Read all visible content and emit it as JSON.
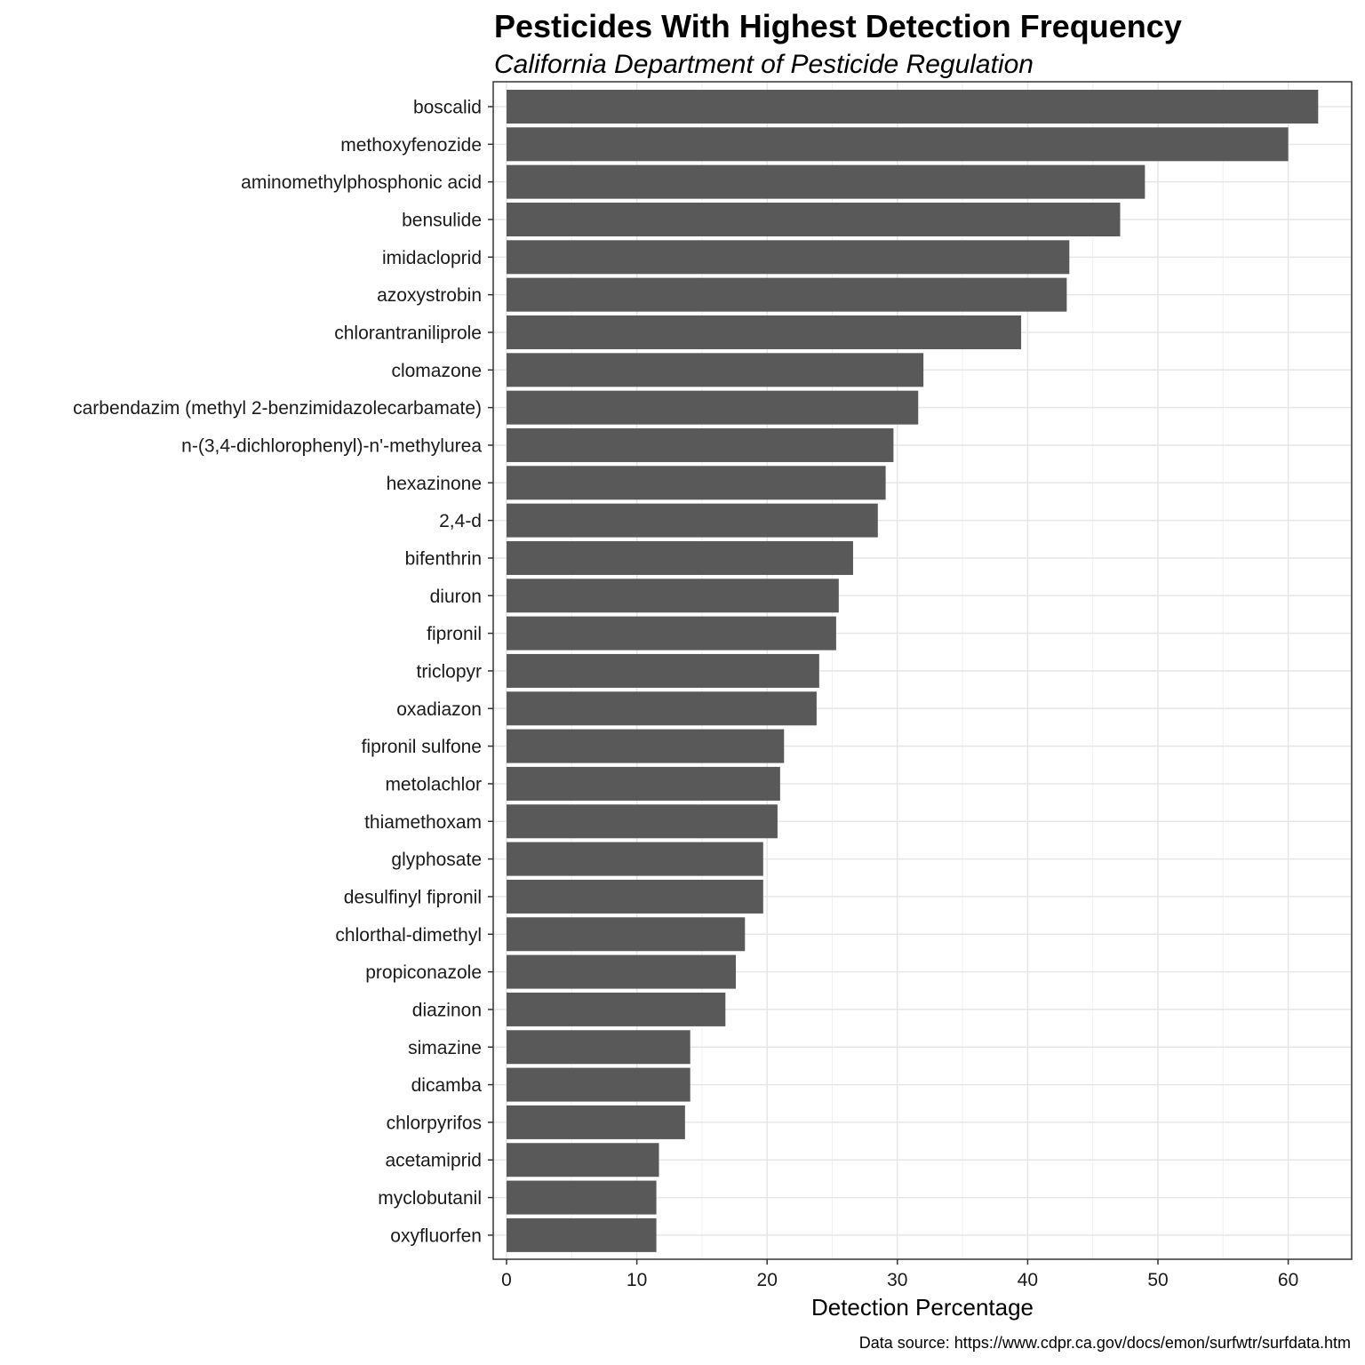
{
  "chart_data": {
    "type": "bar",
    "orientation": "horizontal",
    "title": "Pesticides With Highest Detection Frequency",
    "subtitle": "California Department of Pesticide Regulation",
    "xlabel": "Detection Percentage",
    "ylabel": "",
    "caption": "Data source: https://www.cdpr.ca.gov/docs/emon/surfwtr/surfdata.htm",
    "xlim": [
      0,
      65
    ],
    "x_ticks": [
      0,
      10,
      20,
      30,
      40,
      50,
      60
    ],
    "grid": true,
    "legend": "none",
    "bar_color": "#595959",
    "categories": [
      "boscalid",
      "methoxyfenozide",
      "aminomethylphosphonic acid",
      "bensulide",
      "imidacloprid",
      "azoxystrobin",
      "chlorantraniliprole",
      "clomazone",
      "carbendazim (methyl 2-benzimidazolecarbamate)",
      "n-(3,4-dichlorophenyl)-n'-methylurea",
      "hexazinone",
      "2,4-d",
      "bifenthrin",
      "diuron",
      "fipronil",
      "triclopyr",
      "oxadiazon",
      "fipronil sulfone",
      "metolachlor",
      "thiamethoxam",
      "glyphosate",
      "desulfinyl fipronil",
      "chlorthal-dimethyl",
      "propiconazole",
      "diazinon",
      "simazine",
      "dicamba",
      "chlorpyrifos",
      "acetamiprid",
      "myclobutanil",
      "oxyfluorfen"
    ],
    "values": [
      62.3,
      60.0,
      49.0,
      47.1,
      43.2,
      43.0,
      39.5,
      32.0,
      31.6,
      29.7,
      29.1,
      28.5,
      26.6,
      25.5,
      25.3,
      24.0,
      23.8,
      21.3,
      21.0,
      20.8,
      19.7,
      19.7,
      18.3,
      17.6,
      16.8,
      14.1,
      14.1,
      13.7,
      11.7,
      11.5,
      11.5
    ]
  }
}
